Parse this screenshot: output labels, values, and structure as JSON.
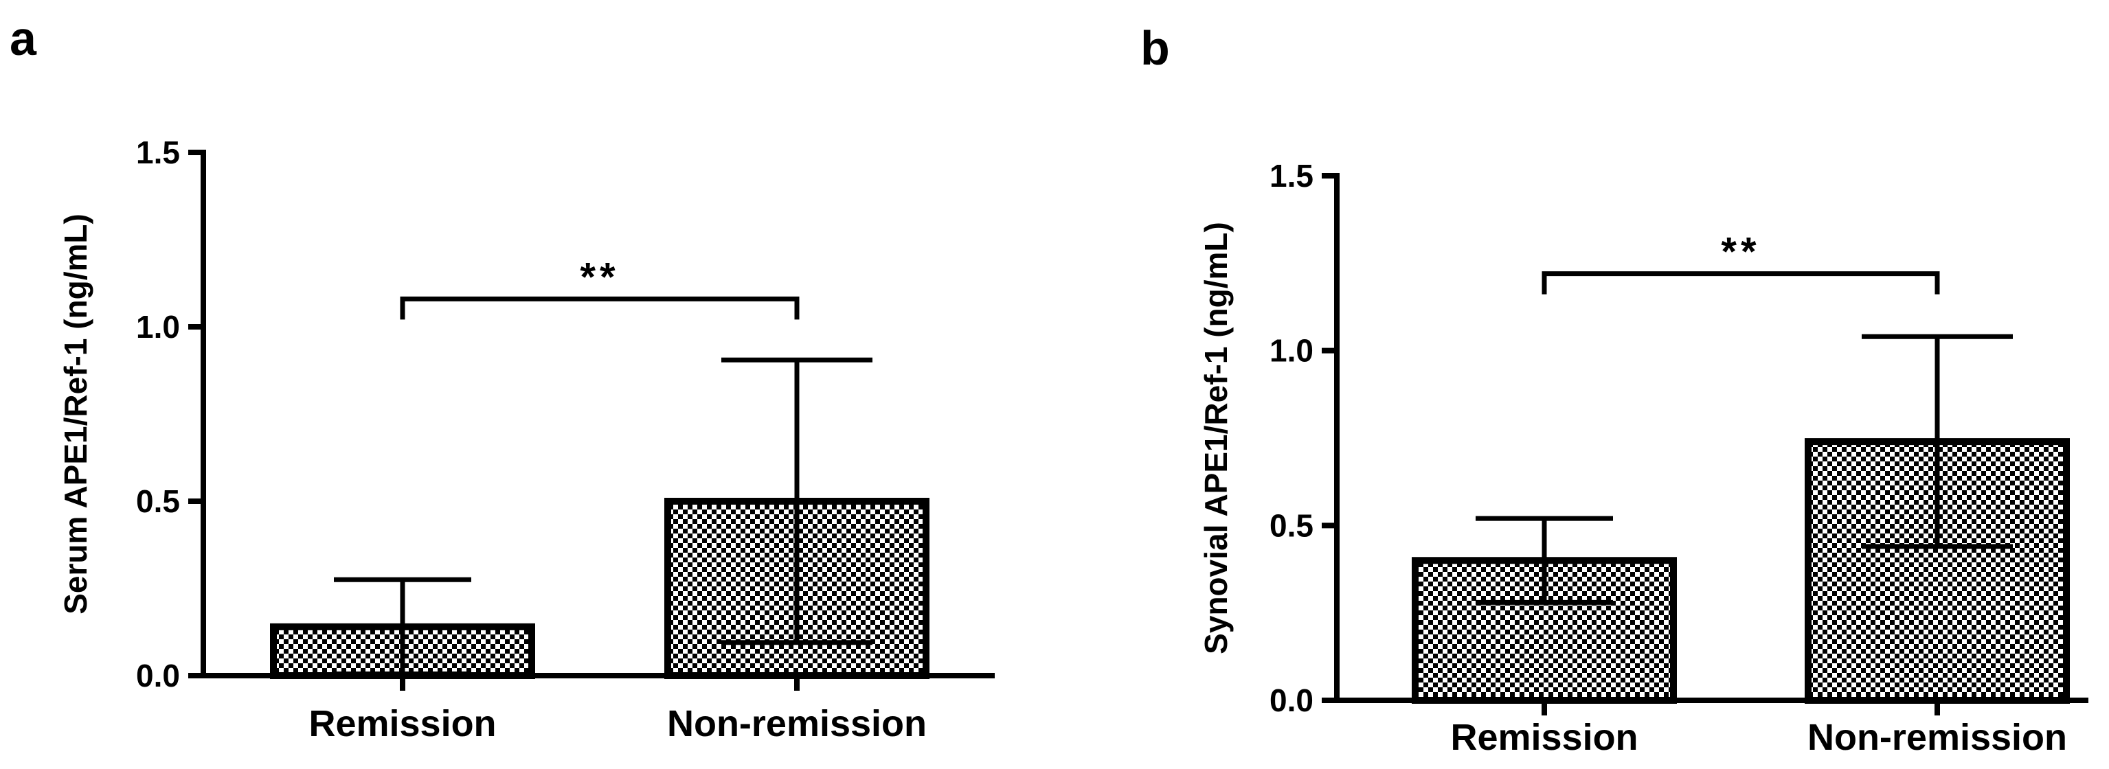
{
  "chart_data": [
    {
      "panel_label": "a",
      "type": "bar",
      "categories": [
        "Remission",
        "Non-remission"
      ],
      "values": [
        0.14,
        0.5
      ],
      "error_bars": [
        0.135,
        0.405
      ],
      "ylabel": "Serum APE1/Ref-1 (ng/mL)",
      "xlabel": "",
      "ylim": [
        0,
        1.5
      ],
      "yticks": [
        0.0,
        0.5,
        1.0,
        1.5
      ],
      "ytick_labels": [
        "0.0",
        "0.5",
        "1.0",
        "1.5"
      ],
      "significance": {
        "label": "**",
        "between": [
          0,
          1
        ],
        "y": 1.08
      },
      "fill_pattern": "checkered"
    },
    {
      "panel_label": "b",
      "type": "bar",
      "categories": [
        "Remission",
        "Non-remission"
      ],
      "values": [
        0.4,
        0.74
      ],
      "error_bars": [
        0.12,
        0.3
      ],
      "ylabel": "Synovial APE1/Ref-1 (ng/mL)",
      "xlabel": "",
      "ylim": [
        0,
        1.5
      ],
      "yticks": [
        0.0,
        0.5,
        1.0,
        1.5
      ],
      "ytick_labels": [
        "0.0",
        "0.5",
        "1.0",
        "1.5"
      ],
      "significance": {
        "label": "**",
        "between": [
          0,
          1
        ],
        "y": 1.22
      },
      "fill_pattern": "checkered"
    }
  ]
}
